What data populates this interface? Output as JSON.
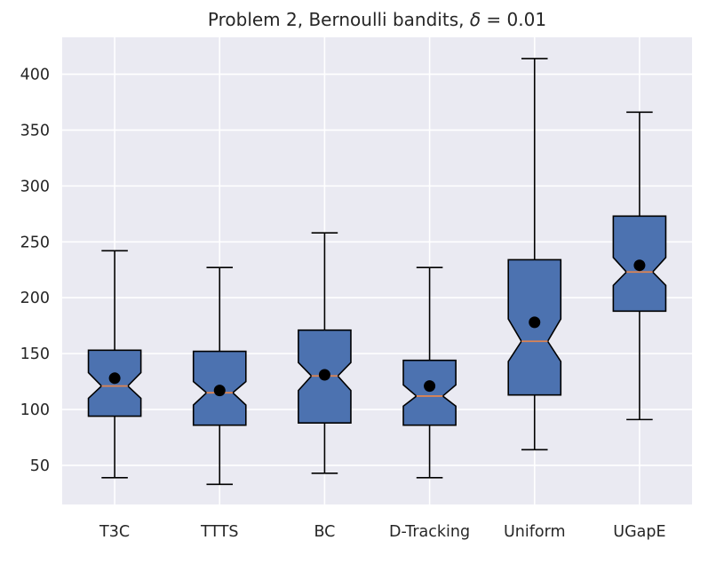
{
  "chart_data": {
    "type": "boxplot",
    "title_prefix": "Problem 2, Bernoulli bandits, ",
    "title_symbol": "δ",
    "title_suffix": " = 0.01",
    "xlabel": "",
    "ylabel": "",
    "ylim": [
      15,
      433
    ],
    "yticks": [
      50,
      100,
      150,
      200,
      250,
      300,
      350,
      400
    ],
    "grid": true,
    "notched": true,
    "categories": [
      "T3C",
      "TTTS",
      "BC",
      "D-Tracking",
      "Uniform",
      "UGapE"
    ],
    "boxes": [
      {
        "label": "T3C",
        "whisker_low": 39,
        "q1": 94,
        "notch_low": 110,
        "median": 121,
        "notch_high": 133,
        "q3": 153,
        "whisker_high": 242,
        "mean": 128
      },
      {
        "label": "TTTS",
        "whisker_low": 33,
        "q1": 86,
        "notch_low": 104,
        "median": 115,
        "notch_high": 125,
        "q3": 152,
        "whisker_high": 227,
        "mean": 117
      },
      {
        "label": "BC",
        "whisker_low": 43,
        "q1": 88,
        "notch_low": 117,
        "median": 130,
        "notch_high": 142,
        "q3": 171,
        "whisker_high": 258,
        "mean": 131
      },
      {
        "label": "D-Tracking",
        "whisker_low": 39,
        "q1": 86,
        "notch_low": 103,
        "median": 112,
        "notch_high": 122,
        "q3": 144,
        "whisker_high": 227,
        "mean": 121
      },
      {
        "label": "Uniform",
        "whisker_low": 64,
        "q1": 113,
        "notch_low": 143,
        "median": 161,
        "notch_high": 181,
        "q3": 234,
        "whisker_high": 414,
        "mean": 178
      },
      {
        "label": "UGapE",
        "whisker_low": 91,
        "q1": 188,
        "notch_low": 211,
        "median": 223,
        "notch_high": 236,
        "q3": 273,
        "whisker_high": 366,
        "mean": 229
      }
    ]
  },
  "colors": {
    "plot_background": "#eaeaf2",
    "grid": "#ffffff",
    "box_fill": "#4c72b0",
    "box_edge": "#000000",
    "median_line": "#dd8452",
    "whisker": "#000000",
    "mean_marker": "#000000"
  }
}
